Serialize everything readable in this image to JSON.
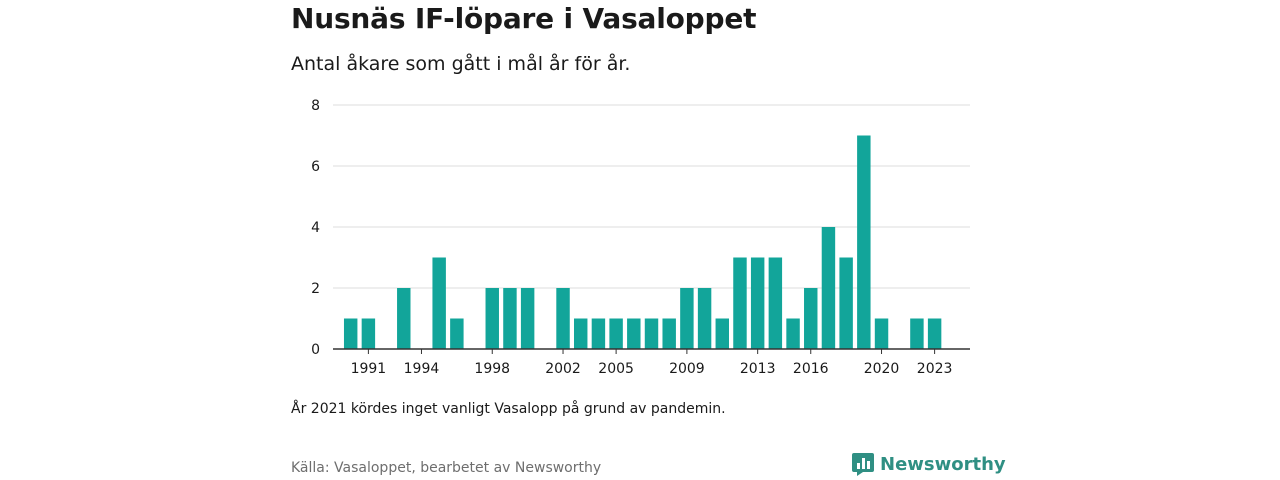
{
  "title": "Nusnäs IF-löpare i Vasaloppet",
  "subtitle": "Antal åkare som gått i mål år för år.",
  "note": "År 2021 kördes inget vanligt Vasalopp på grund av pandemin.",
  "source": "Källa: Vasaloppet, bearbetet av Newsworthy",
  "brand": {
    "name": "Newsworthy",
    "icon": "newsworthy-logo-icon",
    "color": "#2f8f83"
  },
  "colors": {
    "bar": "#12a59a",
    "grid": "#dddddd",
    "axis": "#333333"
  },
  "chart_data": {
    "type": "bar",
    "x": [
      1990,
      1991,
      1993,
      1995,
      1996,
      1998,
      1999,
      2000,
      2002,
      2003,
      2004,
      2005,
      2006,
      2007,
      2008,
      2009,
      2010,
      2011,
      2012,
      2013,
      2014,
      2015,
      2016,
      2017,
      2018,
      2019,
      2020,
      2022,
      2023
    ],
    "values": [
      1,
      1,
      2,
      3,
      1,
      2,
      2,
      2,
      2,
      1,
      1,
      1,
      1,
      1,
      1,
      2,
      2,
      1,
      3,
      3,
      3,
      1,
      2,
      4,
      3,
      7,
      1,
      1,
      1
    ],
    "x_ticks": [
      "1991",
      "1994",
      "1998",
      "2002",
      "2005",
      "2009",
      "2013",
      "2016",
      "2020",
      "2023"
    ],
    "y_ticks": [
      "0",
      "2",
      "4",
      "6",
      "8"
    ],
    "ylim": [
      0,
      8
    ],
    "xlim": [
      1989,
      2025
    ],
    "grid": true,
    "legend": "none"
  }
}
